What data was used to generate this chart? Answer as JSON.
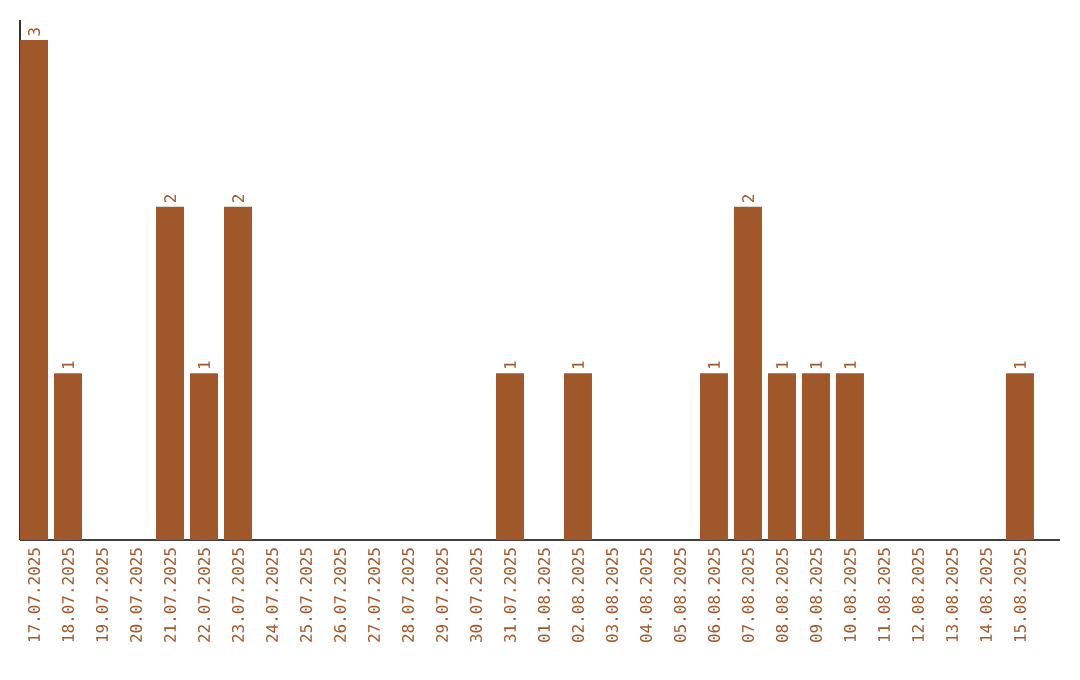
{
  "chart_data": {
    "type": "bar",
    "categories": [
      "17.07.2025",
      "18.07.2025",
      "19.07.2025",
      "20.07.2025",
      "21.07.2025",
      "22.07.2025",
      "23.07.2025",
      "24.07.2025",
      "25.07.2025",
      "26.07.2025",
      "27.07.2025",
      "28.07.2025",
      "29.07.2025",
      "30.07.2025",
      "31.07.2025",
      "01.08.2025",
      "02.08.2025",
      "03.08.2025",
      "04.08.2025",
      "05.08.2025",
      "06.08.2025",
      "07.08.2025",
      "08.08.2025",
      "09.08.2025",
      "10.08.2025",
      "11.08.2025",
      "12.08.2025",
      "13.08.2025",
      "14.08.2025",
      "15.08.2025"
    ],
    "values": [
      3,
      1,
      0,
      0,
      2,
      1,
      2,
      0,
      0,
      0,
      0,
      0,
      0,
      0,
      1,
      0,
      1,
      0,
      0,
      0,
      1,
      2,
      1,
      1,
      1,
      0,
      0,
      0,
      0,
      1
    ],
    "value_labels": [
      "3",
      "1",
      null,
      null,
      "2",
      "1",
      "2",
      null,
      null,
      null,
      null,
      null,
      null,
      null,
      "1",
      null,
      "1",
      null,
      null,
      null,
      "1",
      "2",
      "1",
      "1",
      "1",
      null,
      null,
      null,
      null,
      "1"
    ],
    "color": "#a0572a",
    "tick_labels": "x"
  }
}
